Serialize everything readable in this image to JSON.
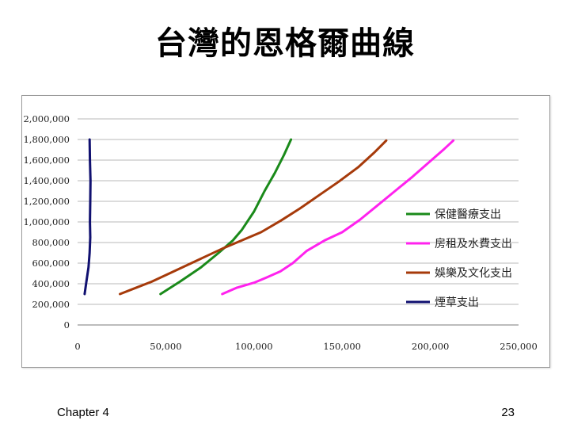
{
  "slide": {
    "title": "台灣的恩格爾曲線",
    "footer_left": "Chapter 4",
    "page_number": "23"
  },
  "chart_data": {
    "type": "line",
    "title": "",
    "xlabel": "",
    "ylabel": "",
    "xlim": [
      0,
      250000
    ],
    "ylim": [
      0,
      2000000
    ],
    "x_ticks": [
      "0",
      "50,000",
      "100,000",
      "150,000",
      "200,000",
      "250,000"
    ],
    "y_ticks": [
      "0",
      "200,000",
      "400,000",
      "600,000",
      "800,000",
      "1,000,000",
      "1,200,000",
      "1,400,000",
      "1,600,000",
      "1,800,000",
      "2,000,000"
    ],
    "grid": "horizontal",
    "legend": "right",
    "series": [
      {
        "name": "保健醫療支出",
        "color": "#1a8a1a",
        "points": [
          [
            47000,
            300000
          ],
          [
            58000,
            420000
          ],
          [
            70000,
            560000
          ],
          [
            80000,
            700000
          ],
          [
            88000,
            820000
          ],
          [
            93000,
            920000
          ],
          [
            100000,
            1100000
          ],
          [
            106000,
            1300000
          ],
          [
            112000,
            1480000
          ],
          [
            117000,
            1650000
          ],
          [
            121000,
            1800000
          ]
        ]
      },
      {
        "name": "房租及水費支出",
        "color": "#ff22ee",
        "points": [
          [
            82000,
            300000
          ],
          [
            90000,
            360000
          ],
          [
            100000,
            410000
          ],
          [
            107000,
            460000
          ],
          [
            115000,
            520000
          ],
          [
            122000,
            600000
          ],
          [
            130000,
            720000
          ],
          [
            140000,
            820000
          ],
          [
            150000,
            900000
          ],
          [
            160000,
            1020000
          ],
          [
            170000,
            1160000
          ],
          [
            180000,
            1300000
          ],
          [
            190000,
            1440000
          ],
          [
            200000,
            1590000
          ],
          [
            208000,
            1710000
          ],
          [
            213000,
            1790000
          ]
        ]
      },
      {
        "name": "娛樂及文化支出",
        "color": "#a63a0a",
        "points": [
          [
            24000,
            300000
          ],
          [
            33000,
            360000
          ],
          [
            42000,
            420000
          ],
          [
            52000,
            500000
          ],
          [
            62000,
            580000
          ],
          [
            72000,
            660000
          ],
          [
            82000,
            740000
          ],
          [
            93000,
            820000
          ],
          [
            104000,
            900000
          ],
          [
            115000,
            1010000
          ],
          [
            126000,
            1130000
          ],
          [
            137000,
            1260000
          ],
          [
            148000,
            1390000
          ],
          [
            159000,
            1530000
          ],
          [
            168000,
            1670000
          ],
          [
            175000,
            1790000
          ]
        ]
      },
      {
        "name": "煙草支出",
        "color": "#101070",
        "points": [
          [
            4000,
            300000
          ],
          [
            5000,
            420000
          ],
          [
            6200,
            560000
          ],
          [
            6800,
            700000
          ],
          [
            7200,
            850000
          ],
          [
            7000,
            1000000
          ],
          [
            7200,
            1200000
          ],
          [
            7300,
            1400000
          ],
          [
            7000,
            1600000
          ],
          [
            6800,
            1800000
          ]
        ]
      }
    ]
  }
}
